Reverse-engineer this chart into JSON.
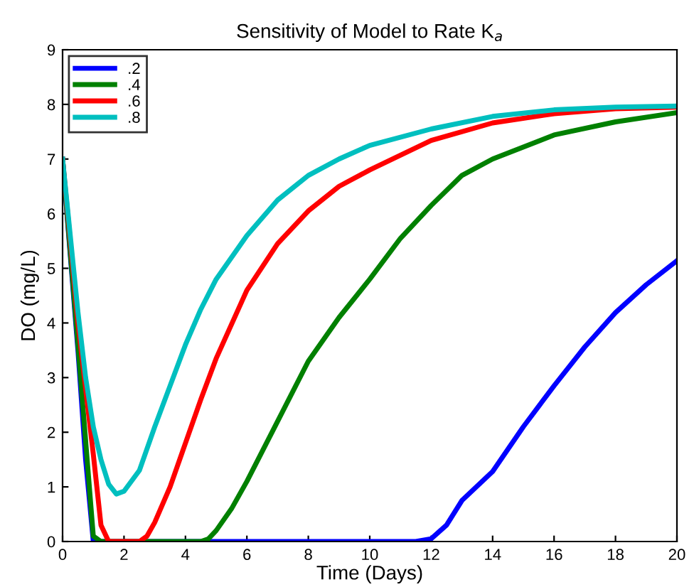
{
  "chart_data": {
    "type": "line",
    "title": "Sensitivity of Model to Rate K$_{a}$",
    "xlabel": "Time (Days)",
    "ylabel": "DO (mg/L)",
    "xlim": [
      0,
      20
    ],
    "ylim": [
      0,
      9
    ],
    "xticks": [
      0,
      2,
      4,
      6,
      8,
      10,
      12,
      14,
      16,
      18,
      20
    ],
    "yticks": [
      0,
      1,
      2,
      3,
      4,
      5,
      6,
      7,
      8,
      9
    ],
    "legend": "top left",
    "grid": false,
    "marker": "none",
    "line_style": "solid",
    "series": [
      {
        "name": ".2",
        "color": "#0000ff",
        "x": [
          0,
          0.5,
          0.75,
          1,
          11.5,
          12,
          12.5,
          13,
          14,
          15,
          16,
          17,
          18,
          19,
          20
        ],
        "values": [
          7,
          3.5,
          1.5,
          0,
          0,
          0.05,
          0.3,
          0.75,
          1.28,
          2.1,
          2.85,
          3.56,
          4.19,
          4.7,
          5.14
        ]
      },
      {
        "name": ".4",
        "color": "#008000",
        "x": [
          0,
          0.5,
          1,
          1.25,
          4.5,
          4.75,
          5,
          5.5,
          6,
          7,
          8,
          9,
          10,
          11,
          12,
          13,
          14,
          16,
          18,
          20
        ],
        "values": [
          7,
          3.6,
          0.1,
          0,
          0,
          0.05,
          0.2,
          0.6,
          1.1,
          2.2,
          3.3,
          4.1,
          4.8,
          5.55,
          6.15,
          6.7,
          7.0,
          7.44,
          7.68,
          7.85
        ]
      },
      {
        "name": ".6",
        "color": "#ff0000",
        "x": [
          0,
          0.5,
          1,
          1.25,
          1.5,
          2.5,
          2.75,
          3,
          3.5,
          4,
          4.5,
          5,
          6,
          7,
          8,
          9,
          10,
          12,
          14,
          16,
          18,
          20
        ],
        "values": [
          7,
          4.0,
          1.6,
          0.3,
          0,
          0,
          0.1,
          0.35,
          1.0,
          1.8,
          2.6,
          3.35,
          4.6,
          5.45,
          6.05,
          6.5,
          6.8,
          7.34,
          7.66,
          7.83,
          7.92,
          7.95
        ]
      },
      {
        "name": ".8",
        "color": "#00bfbf",
        "x": [
          0,
          0.25,
          0.5,
          0.75,
          1,
          1.25,
          1.5,
          1.75,
          2,
          2.5,
          3,
          3.5,
          4,
          4.5,
          5,
          6,
          7,
          8,
          9,
          10,
          12,
          14,
          16,
          18,
          20
        ],
        "values": [
          7,
          5.6,
          4.2,
          3.0,
          2.1,
          1.5,
          1.05,
          0.87,
          0.92,
          1.3,
          2.1,
          2.85,
          3.6,
          4.25,
          4.8,
          5.6,
          6.25,
          6.7,
          7.0,
          7.25,
          7.55,
          7.78,
          7.9,
          7.95,
          7.97
        ]
      }
    ]
  }
}
